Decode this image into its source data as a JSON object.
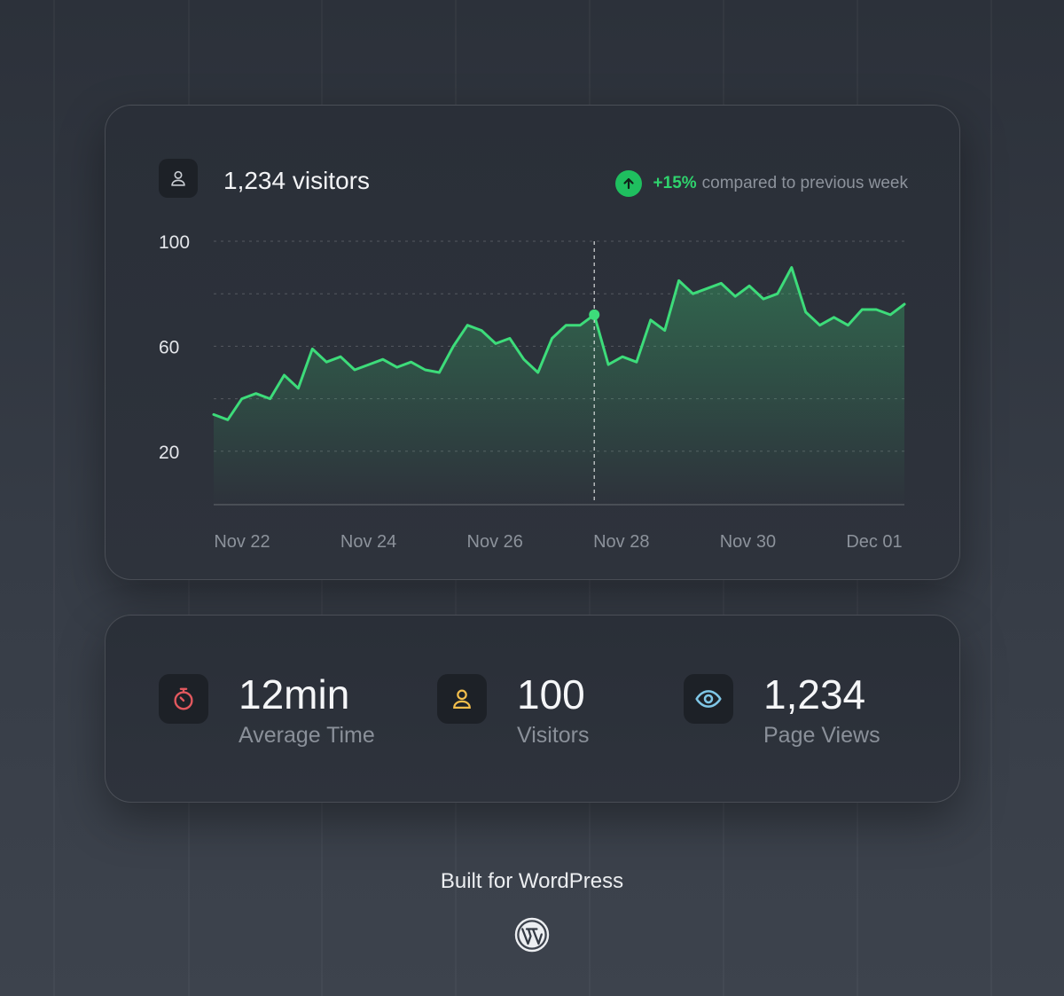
{
  "header": {
    "title": "1,234 visitors",
    "change": "+15%",
    "change_text": "compared to previous week",
    "icon": "user-icon",
    "change_icon": "arrow-up-icon"
  },
  "chart_data": {
    "type": "area",
    "x_tick_labels": [
      "Nov 22",
      "Nov 24",
      "Nov 26",
      "Nov 28",
      "Nov 30",
      "Dec 01"
    ],
    "y_tick_labels": [
      "100",
      "60",
      "20"
    ],
    "ylim": [
      0,
      100
    ],
    "grid": true,
    "line_color": "#3ddc7a",
    "highlight_index": 27,
    "series": [
      {
        "values": [
          34,
          32,
          40,
          42,
          40,
          49,
          44,
          59,
          54,
          56,
          51,
          53,
          55,
          52,
          54,
          51,
          50,
          60,
          68,
          66,
          61,
          63,
          55,
          50,
          63,
          68,
          68,
          72,
          53,
          56,
          54,
          70,
          66,
          85,
          80,
          82,
          84,
          79,
          83,
          78,
          80,
          90,
          73,
          68,
          71,
          68,
          74,
          74,
          72,
          76
        ]
      }
    ]
  },
  "stats": [
    {
      "value": "12min",
      "label": "Average Time",
      "icon": "stopwatch-icon",
      "color": "#e2585e"
    },
    {
      "value": "100",
      "label": "Visitors",
      "icon": "user-icon",
      "color": "#f2be4c"
    },
    {
      "value": "1,234",
      "label": "Page Views",
      "icon": "eye-icon",
      "color": "#7fc6e6"
    }
  ],
  "footer": {
    "text": "Built for WordPress",
    "logo": "wordpress-logo-icon"
  }
}
